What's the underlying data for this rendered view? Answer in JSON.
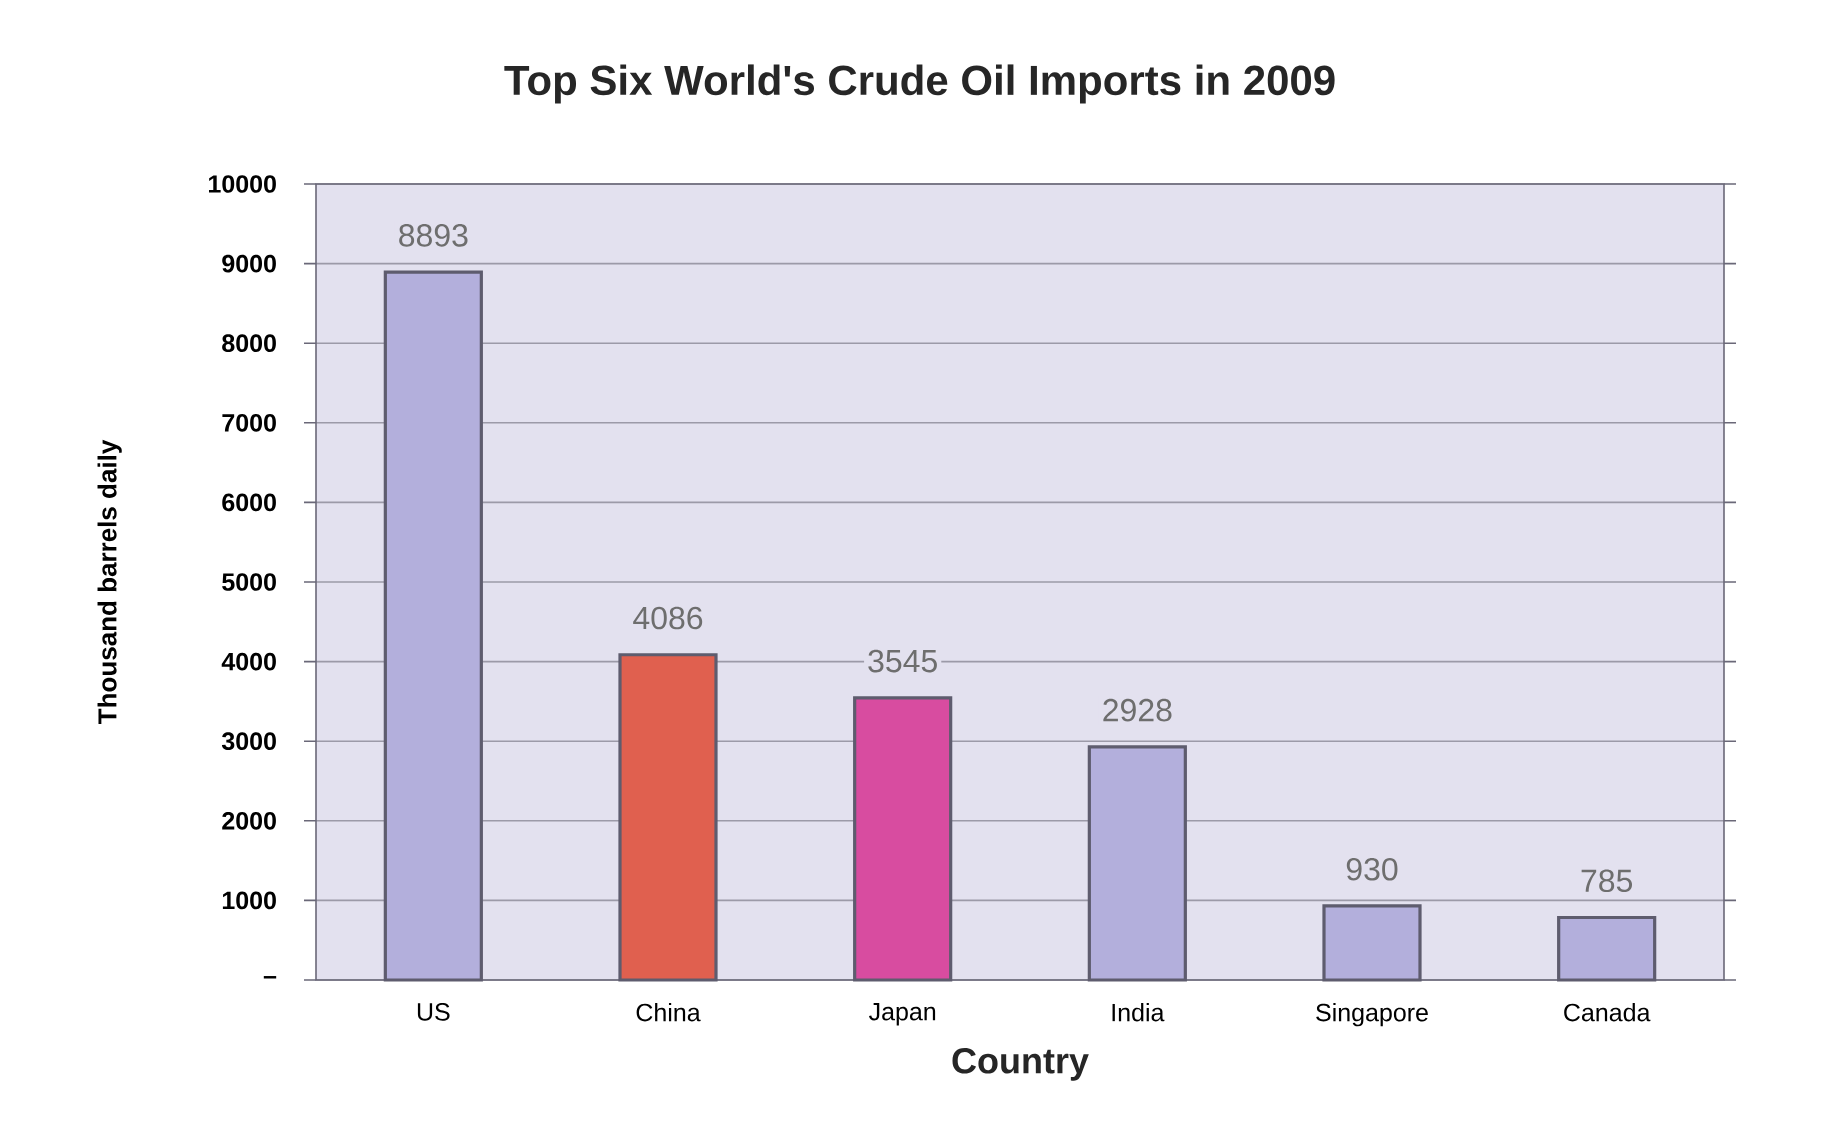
{
  "chart_data": {
    "type": "bar",
    "title": "Top Six World's Crude Oil Imports in 2009",
    "xlabel": "Country",
    "ylabel": "Thousand barrels daily",
    "categories": [
      "US",
      "China",
      "Japan",
      "India",
      "Singapore",
      "Canada"
    ],
    "values": [
      8893,
      4086,
      3545,
      2928,
      930,
      785
    ],
    "colors": [
      "#b3afdc",
      "#e0604f",
      "#d84ca0",
      "#b3afdc",
      "#b3afdc",
      "#b3afdc"
    ],
    "ylim": [
      0,
      10000
    ],
    "yticks": [
      {
        "value": 0,
        "label": "–"
      },
      1000,
      2000,
      3000,
      4000,
      5000,
      6000,
      7000,
      8000,
      9000,
      10000
    ],
    "grid": "y",
    "data_labels": true
  }
}
